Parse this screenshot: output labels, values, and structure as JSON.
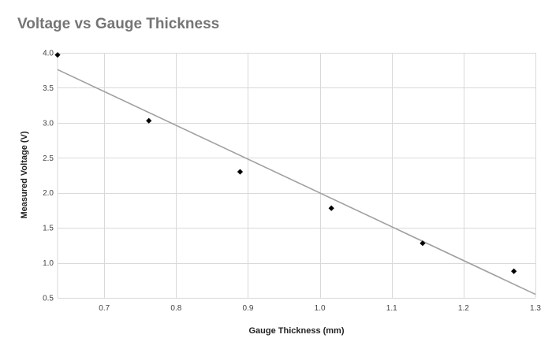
{
  "chart_data": {
    "type": "scatter",
    "title": "Voltage vs Gauge Thickness",
    "xlabel": "Gauge Thickness (mm)",
    "ylabel": "Measured Voltage (V)",
    "xlim": [
      0.635,
      1.3
    ],
    "ylim": [
      0.5,
      4.0
    ],
    "x_ticks": [
      0.7,
      0.8,
      0.9,
      1.0,
      1.1,
      1.2,
      1.3
    ],
    "x_tick_labels": [
      "0.7",
      "0.8",
      "0.9",
      "1.0",
      "1.1",
      "1.2",
      "1.3"
    ],
    "y_ticks": [
      0.5,
      1.0,
      1.5,
      2.0,
      2.5,
      3.0,
      3.5,
      4.0
    ],
    "y_tick_labels": [
      "0.5",
      "1.0",
      "1.5",
      "2.0",
      "2.5",
      "3.0",
      "3.5",
      "4.0"
    ],
    "grid": true,
    "legend": "none",
    "marker": "diamond",
    "colors": {
      "marker": "#000000",
      "trendline": "#a0a0a0",
      "grid": "#d9d9d9",
      "title": "#757575"
    },
    "series": [
      {
        "x": [
          0.635,
          0.762,
          0.889,
          1.016,
          1.143,
          1.27
        ],
        "y": [
          3.97,
          3.03,
          2.3,
          1.78,
          1.28,
          0.88
        ]
      }
    ],
    "trendline": {
      "type": "linear",
      "x": [
        0.635,
        1.3
      ],
      "y": [
        3.76,
        0.55
      ]
    }
  }
}
